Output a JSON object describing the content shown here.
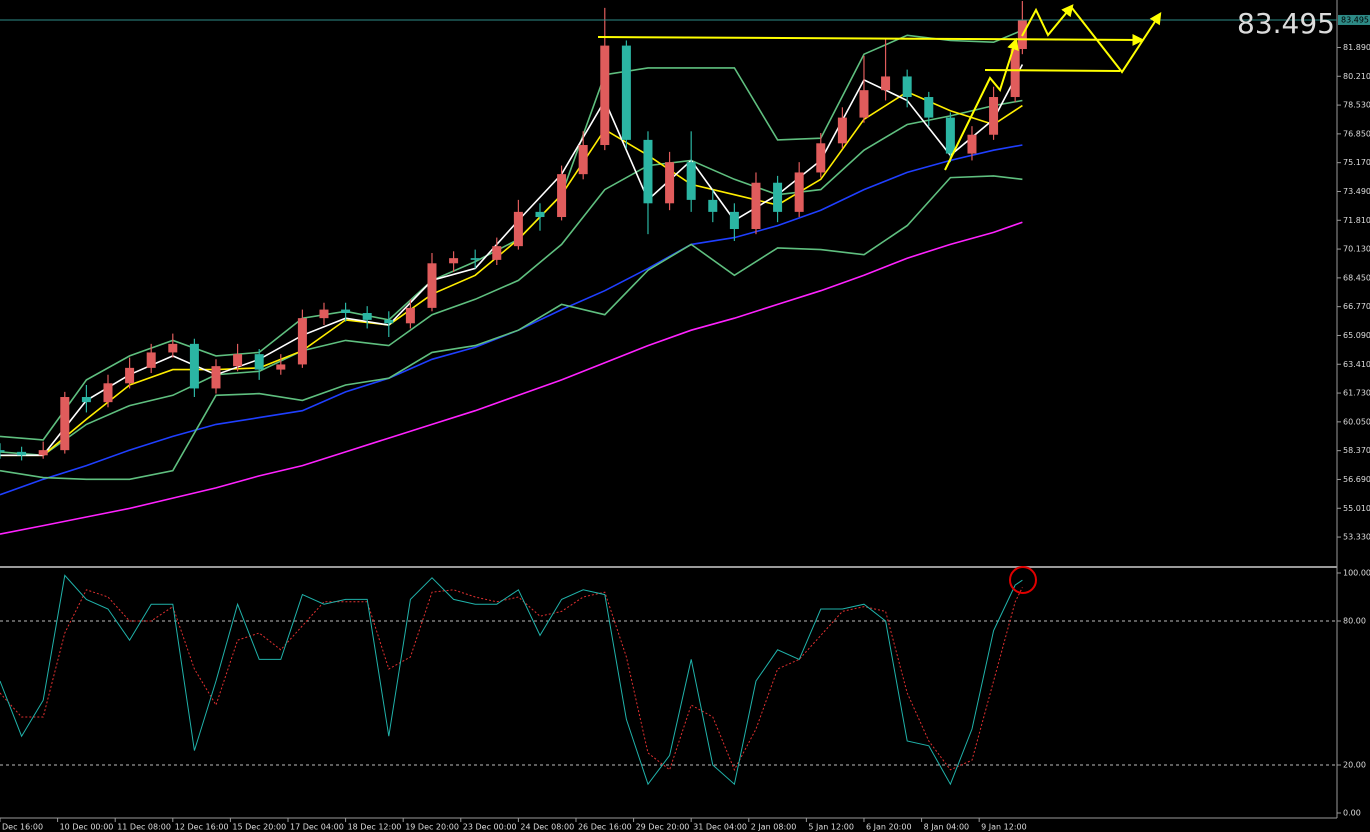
{
  "chart_data": [
    {
      "type": "candlestick",
      "last_price": 83.495,
      "last_price_color": "#2e8b87",
      "big_label_color": "#7cfc00",
      "up_color": "#e05c5c",
      "down_color": "#2bb5a3",
      "xlim": [
        0,
        185.7
      ],
      "ylim": [
        51.7,
        84.66
      ],
      "yticks": [
        {
          "value": 53.33,
          "label": "53.330"
        },
        {
          "value": 55.01,
          "label": "55.010"
        },
        {
          "value": 56.69,
          "label": "56.690"
        },
        {
          "value": 58.37,
          "label": "58.370"
        },
        {
          "value": 60.05,
          "label": "60.050"
        },
        {
          "value": 61.73,
          "label": "61.730"
        },
        {
          "value": 63.41,
          "label": "63.410"
        },
        {
          "value": 65.09,
          "label": "65.090"
        },
        {
          "value": 66.77,
          "label": "66.770"
        },
        {
          "value": 68.45,
          "label": "68.450"
        },
        {
          "value": 70.13,
          "label": "70.130"
        },
        {
          "value": 71.81,
          "label": "71.810"
        },
        {
          "value": 73.49,
          "label": "73.490"
        },
        {
          "value": 75.17,
          "label": "75.170"
        },
        {
          "value": 76.85,
          "label": "76.850"
        },
        {
          "value": 78.53,
          "label": "78.530"
        },
        {
          "value": 80.21,
          "label": "80.210"
        },
        {
          "value": 81.89,
          "label": "81.890"
        }
      ],
      "x": [
        0,
        3,
        6,
        9,
        12,
        15,
        18,
        21,
        24,
        27,
        30,
        33,
        36,
        39,
        42,
        45,
        48,
        51,
        54,
        57,
        60,
        63,
        66,
        69,
        72,
        75,
        78,
        81,
        84,
        87,
        90,
        93,
        96,
        99,
        102,
        105,
        108,
        111,
        114,
        117,
        120,
        123,
        126,
        129,
        132,
        135,
        138,
        141,
        142
      ],
      "open": [
        58.4,
        58.3,
        58.1,
        58.4,
        61.5,
        61.2,
        62.3,
        63.2,
        64.1,
        64.6,
        62.0,
        63.3,
        64.0,
        63.1,
        63.4,
        66.1,
        66.6,
        66.4,
        66.0,
        65.8,
        66.7,
        69.3,
        69.6,
        69.5,
        70.3,
        72.3,
        72.0,
        74.5,
        76.2,
        82.0,
        76.5,
        72.8,
        75.2,
        73.0,
        72.3,
        71.3,
        74.0,
        72.3,
        74.6,
        76.3,
        77.8,
        79.4,
        80.2,
        79.0,
        77.8,
        75.7,
        76.8,
        79.0,
        81.8
      ],
      "high": [
        58.8,
        58.6,
        58.9,
        61.8,
        62.2,
        62.8,
        63.8,
        64.6,
        65.2,
        64.9,
        63.7,
        64.6,
        64.3,
        64.0,
        66.6,
        67.0,
        67.0,
        66.8,
        66.5,
        67.2,
        69.9,
        70.0,
        70.1,
        70.8,
        73.0,
        72.8,
        75.0,
        77.0,
        84.2,
        82.3,
        77.0,
        75.8,
        77.0,
        73.6,
        72.8,
        74.6,
        74.4,
        75.2,
        76.9,
        78.4,
        81.4,
        82.4,
        80.6,
        79.3,
        78.1,
        77.3,
        79.6,
        82.2,
        84.6
      ],
      "low": [
        57.9,
        57.8,
        57.9,
        58.2,
        60.6,
        60.9,
        62.0,
        62.9,
        63.8,
        61.5,
        61.7,
        63.0,
        62.5,
        62.8,
        63.2,
        65.7,
        65.9,
        65.5,
        65.0,
        65.5,
        66.5,
        68.8,
        69.0,
        69.2,
        70.1,
        71.2,
        71.8,
        74.2,
        75.9,
        76.0,
        71.0,
        72.4,
        72.3,
        71.7,
        70.6,
        71.0,
        71.7,
        72.0,
        74.3,
        76.0,
        77.5,
        78.8,
        78.4,
        77.3,
        75.2,
        75.3,
        76.5,
        78.7,
        81.5
      ],
      "close": [
        58.3,
        58.1,
        58.4,
        61.5,
        61.2,
        62.3,
        63.2,
        64.1,
        64.6,
        62.0,
        63.3,
        64.0,
        63.1,
        63.4,
        66.1,
        66.6,
        66.4,
        66.0,
        65.8,
        66.7,
        69.3,
        69.6,
        69.5,
        70.3,
        72.3,
        72.0,
        74.5,
        76.2,
        82.0,
        76.5,
        72.8,
        75.2,
        73.0,
        72.3,
        71.3,
        74.0,
        72.3,
        74.6,
        76.3,
        77.8,
        79.4,
        80.2,
        79.0,
        77.8,
        75.7,
        76.8,
        79.0,
        81.8,
        83.495
      ],
      "series": [
        {
          "color": "#ff22ff",
          "x": [
            0,
            6,
            12,
            18,
            24,
            30,
            36,
            42,
            48,
            54,
            60,
            66,
            72,
            78,
            84,
            90,
            96,
            102,
            108,
            114,
            120,
            126,
            132,
            138,
            142
          ],
          "values": [
            53.5,
            54.0,
            54.5,
            55.0,
            55.6,
            56.2,
            56.9,
            57.5,
            58.3,
            59.1,
            59.9,
            60.7,
            61.6,
            62.5,
            63.5,
            64.5,
            65.4,
            66.1,
            66.9,
            67.7,
            68.6,
            69.6,
            70.4,
            71.1,
            71.7
          ]
        },
        {
          "color": "#1f3fff",
          "x": [
            0,
            6,
            12,
            18,
            24,
            30,
            36,
            42,
            48,
            54,
            60,
            66,
            72,
            78,
            84,
            90,
            96,
            102,
            108,
            114,
            120,
            126,
            132,
            138,
            142
          ],
          "values": [
            55.8,
            56.7,
            57.5,
            58.4,
            59.2,
            59.9,
            60.3,
            60.7,
            61.8,
            62.6,
            63.7,
            64.4,
            65.4,
            66.6,
            67.7,
            69.0,
            70.4,
            70.8,
            71.5,
            72.4,
            73.6,
            74.6,
            75.3,
            75.9,
            76.2
          ]
        },
        {
          "color": "#5fbf7f",
          "x": [
            0,
            6,
            12,
            18,
            24,
            30,
            36,
            42,
            48,
            54,
            60,
            66,
            72,
            78,
            84,
            90,
            96,
            102,
            108,
            114,
            120,
            126,
            132,
            138,
            142
          ],
          "values": [
            59.2,
            59.0,
            62.5,
            63.9,
            64.8,
            63.9,
            64.1,
            66.1,
            66.5,
            66.0,
            68.3,
            69.4,
            70.7,
            73.3,
            80.3,
            80.7,
            80.7,
            80.7,
            76.5,
            76.6,
            81.5,
            82.6,
            82.3,
            82.2,
            82.9
          ]
        },
        {
          "color": "#5fbf7f",
          "x": [
            0,
            6,
            12,
            18,
            24,
            30,
            36,
            42,
            48,
            54,
            60,
            66,
            72,
            78,
            84,
            90,
            96,
            102,
            108,
            114,
            120,
            126,
            132,
            138,
            142
          ],
          "values": [
            58.3,
            58.1,
            59.9,
            61.0,
            61.6,
            62.8,
            63.0,
            64.2,
            64.8,
            64.5,
            66.3,
            67.2,
            68.3,
            70.4,
            73.6,
            75.0,
            75.3,
            74.2,
            73.3,
            73.6,
            75.9,
            77.4,
            77.9,
            78.5,
            78.8
          ]
        },
        {
          "color": "#5fbf7f",
          "x": [
            0,
            6,
            12,
            18,
            24,
            30,
            36,
            42,
            48,
            54,
            60,
            66,
            72,
            78,
            84,
            90,
            96,
            102,
            108,
            114,
            120,
            126,
            132,
            138,
            142
          ],
          "values": [
            57.2,
            56.8,
            56.7,
            56.7,
            57.2,
            61.6,
            61.7,
            61.3,
            62.2,
            62.6,
            64.1,
            64.5,
            65.4,
            66.9,
            66.3,
            68.9,
            70.4,
            68.6,
            70.2,
            70.1,
            69.8,
            71.5,
            74.3,
            74.4,
            74.2
          ]
        },
        {
          "color": "#ffee00",
          "x": [
            0,
            6,
            12,
            18,
            24,
            30,
            36,
            42,
            48,
            54,
            60,
            66,
            72,
            78,
            84,
            90,
            96,
            102,
            108,
            114,
            120,
            126,
            132,
            138,
            142
          ],
          "values": [
            58.1,
            58.1,
            60.2,
            62.2,
            63.1,
            63.1,
            63.2,
            64.2,
            66.0,
            65.7,
            67.5,
            68.6,
            70.7,
            73.3,
            77.1,
            75.6,
            73.9,
            73.3,
            72.7,
            74.2,
            77.7,
            79.3,
            78.2,
            77.4,
            78.5
          ]
        },
        {
          "color": "#ffffff",
          "x": [
            0,
            6,
            12,
            18,
            24,
            30,
            36,
            42,
            48,
            54,
            60,
            66,
            72,
            78,
            84,
            90,
            96,
            102,
            108,
            114,
            120,
            126,
            132,
            138,
            142
          ],
          "values": [
            58.1,
            58.1,
            61.3,
            62.8,
            63.9,
            62.8,
            63.7,
            65.1,
            66.1,
            65.7,
            68.3,
            69.0,
            71.8,
            74.5,
            78.8,
            73.0,
            75.3,
            71.8,
            73.3,
            75.3,
            80.0,
            78.8,
            75.6,
            77.7,
            80.9
          ]
        }
      ]
    },
    {
      "type": "line",
      "xlim": [
        0,
        185.7
      ],
      "ylim": [
        -2.08,
        102.08
      ],
      "yticks": [
        {
          "value": 100,
          "label": "100.00"
        },
        {
          "value": 80,
          "label": "80.00"
        },
        {
          "value": 20,
          "label": "20.00"
        },
        {
          "value": 0,
          "label": "0.00"
        }
      ],
      "levels": [
        80,
        20
      ],
      "xticks": [
        {
          "value": 0,
          "label": "Dec 16:00"
        },
        {
          "value": 8,
          "label": "10 Dec 00:00"
        },
        {
          "value": 16,
          "label": "11 Dec 08:00"
        },
        {
          "value": 24,
          "label": "12 Dec 16:00"
        },
        {
          "value": 32,
          "label": "15 Dec 20:00"
        },
        {
          "value": 40,
          "label": "17 Dec 04:00"
        },
        {
          "value": 48,
          "label": "18 Dec 12:00"
        },
        {
          "value": 56,
          "label": "19 Dec 20:00"
        },
        {
          "value": 64,
          "label": "23 Dec 00:00"
        },
        {
          "value": 72,
          "label": "24 Dec 08:00"
        },
        {
          "value": 80,
          "label": "26 Dec 16:00"
        },
        {
          "value": 88,
          "label": "29 Dec 20:00"
        },
        {
          "value": 96,
          "label": "31 Dec 04:00"
        },
        {
          "value": 104,
          "label": "2 Jan 08:00"
        },
        {
          "value": 112,
          "label": "5 Jan 12:00"
        },
        {
          "value": 120,
          "label": "6 Jan 20:00"
        },
        {
          "value": 128,
          "label": "8 Jan 04:00"
        },
        {
          "value": 136,
          "label": "9 Jan 12:00"
        }
      ],
      "series": [
        {
          "color": "#e03030",
          "dash": true,
          "x": [
            0,
            3,
            6,
            9,
            12,
            15,
            18,
            21,
            24,
            27,
            30,
            33,
            36,
            39,
            42,
            45,
            48,
            51,
            54,
            57,
            60,
            63,
            66,
            69,
            72,
            75,
            78,
            81,
            84,
            87,
            90,
            93,
            96,
            99,
            102,
            105,
            108,
            111,
            114,
            117,
            120,
            123,
            126,
            129,
            132,
            135,
            138,
            141,
            142
          ],
          "values": [
            50,
            40,
            40,
            75,
            93,
            90,
            80,
            80,
            86,
            60,
            45,
            72,
            75,
            68,
            78,
            88,
            88,
            88,
            60,
            65,
            92,
            93,
            90,
            88,
            90,
            82,
            84,
            90,
            92,
            65,
            25,
            18,
            45,
            40,
            18,
            35,
            60,
            64,
            74,
            84,
            86,
            84,
            50,
            30,
            18,
            22,
            55,
            88,
            94
          ]
        },
        {
          "color": "#20b2aa",
          "dash": false,
          "x": [
            0,
            3,
            6,
            9,
            12,
            15,
            18,
            21,
            24,
            27,
            30,
            33,
            36,
            39,
            42,
            45,
            48,
            51,
            54,
            57,
            60,
            63,
            66,
            69,
            72,
            75,
            78,
            81,
            84,
            87,
            90,
            93,
            96,
            99,
            102,
            105,
            108,
            111,
            114,
            117,
            120,
            123,
            126,
            129,
            132,
            135,
            138,
            141,
            142
          ],
          "values": [
            55,
            32,
            47,
            99,
            89,
            85,
            72,
            87,
            87,
            26,
            55,
            87,
            64,
            64,
            91,
            87,
            89,
            89,
            32,
            89,
            98,
            89,
            87,
            87,
            93,
            74,
            89,
            93,
            91,
            39,
            12,
            24,
            64,
            20,
            12,
            55,
            68,
            64,
            85,
            85,
            87,
            80,
            30,
            28,
            12,
            35,
            76,
            95,
            97
          ]
        }
      ]
    }
  ]
}
